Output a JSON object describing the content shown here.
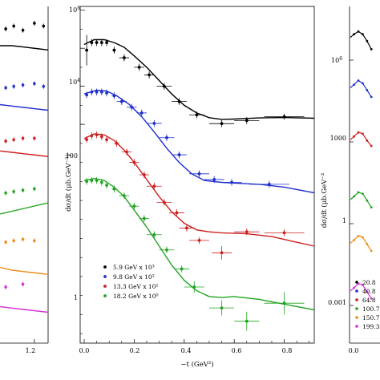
{
  "chart_data": [
    {
      "panel": "left",
      "type": "scatter",
      "x_ticks": [
        "1.2"
      ],
      "series": [
        {
          "color": "#000000",
          "x": [
            0.95,
            1.02,
            1.1,
            1.2,
            1.28
          ],
          "y": [
            10.2,
            10.3,
            10.15,
            10.4,
            10.3
          ],
          "curve_y": [
            9.6,
            9.6,
            9.55,
            9.5,
            9.45
          ]
        },
        {
          "color": "#1f2ecc",
          "x": [
            0.95,
            1.02,
            1.1,
            1.2,
            1.28
          ],
          "y": [
            8.1,
            8.15,
            8.2,
            8.25,
            8.15
          ],
          "curve_y": [
            7.5,
            7.45,
            7.4,
            7.35,
            7.3
          ]
        },
        {
          "color": "#cc1f1f",
          "x": [
            0.95,
            1.02,
            1.1,
            1.2
          ],
          "y": [
            6.2,
            6.25,
            6.3,
            6.3
          ],
          "curve_y": [
            5.85,
            5.8,
            5.75,
            5.7,
            5.65
          ]
        },
        {
          "color": "#1fa31f",
          "x": [
            0.95,
            1.02,
            1.1,
            1.2
          ],
          "y": [
            4.35,
            4.4,
            4.45,
            4.5
          ],
          "curve_y": [
            3.6,
            3.7,
            3.8,
            3.9,
            4.0
          ]
        },
        {
          "color": "#f28c1a",
          "x": [
            0.95,
            1.02,
            1.1,
            1.2
          ],
          "y": [
            2.6,
            2.65,
            2.7,
            2.65
          ],
          "curve_y": [
            1.7,
            1.6,
            1.55,
            1.5,
            1.45
          ]
        },
        {
          "color": "#d42fd4",
          "x": [
            0.95,
            1.1
          ],
          "y": [
            1.0,
            1.1
          ],
          "curve_y": [
            0.3,
            0.25,
            0.2,
            0.15,
            0.1
          ]
        }
      ]
    },
    {
      "panel": "center",
      "type": "scatter",
      "xlabel": "−t (GeV²)",
      "ylabel": "dσ/dt (μb.GeV⁻²)",
      "xlim": [
        0.0,
        0.92
      ],
      "x_ticks": [
        "0.0",
        "0.2",
        "0.4",
        "0.6",
        "0.8"
      ],
      "y_scale": "log",
      "y_ticks": [
        "10⁶",
        "10⁴",
        "100",
        "1"
      ],
      "legend": {
        "position": "bottom-left",
        "entries": [
          "5.9 GeV x 10³",
          "9.8 GeV x 10²",
          "13.3 GeV x 10¹",
          "18.2 GeV x 10⁰"
        ]
      },
      "series": [
        {
          "name": "5.9 GeV x 10³",
          "color": "#000000",
          "points": [
            {
              "x": 0.01,
              "y": 3.9,
              "ey": 0.8
            },
            {
              "x": 0.03,
              "y": 4.3
            },
            {
              "x": 0.05,
              "y": 4.3
            },
            {
              "x": 0.07,
              "y": 4.3
            },
            {
              "x": 0.09,
              "y": 4.3
            },
            {
              "x": 0.12,
              "y": 3.9
            },
            {
              "x": 0.16,
              "y": 3.5,
              "ex": 0.02
            },
            {
              "x": 0.22,
              "y": 3.0,
              "ex": 0.02
            },
            {
              "x": 0.26,
              "y": 2.6,
              "ex": 0.02
            },
            {
              "x": 0.32,
              "y": 2.0,
              "ex": 0.03
            },
            {
              "x": 0.38,
              "y": 1.2,
              "ex": 0.03
            },
            {
              "x": 0.45,
              "y": 0.5,
              "ex": 0.03
            },
            {
              "x": 0.55,
              "y": 0.04,
              "ex": 0.05
            },
            {
              "x": 0.65,
              "y": 0.2,
              "ex": 0.05
            },
            {
              "x": 0.8,
              "y": 0.4,
              "ex": 0.08,
              "ey": 0.15
            }
          ],
          "curve": [
            [
              0.0,
              4.2
            ],
            [
              0.04,
              4.45
            ],
            [
              0.08,
              4.45
            ],
            [
              0.12,
              4.3
            ],
            [
              0.16,
              4.05
            ],
            [
              0.2,
              3.6
            ],
            [
              0.25,
              3.0
            ],
            [
              0.3,
              2.3
            ],
            [
              0.35,
              1.6
            ],
            [
              0.4,
              1.0
            ],
            [
              0.45,
              0.6
            ],
            [
              0.5,
              0.35
            ],
            [
              0.55,
              0.26
            ],
            [
              0.6,
              0.28
            ],
            [
              0.7,
              0.34
            ],
            [
              0.8,
              0.36
            ],
            [
              0.92,
              0.32
            ]
          ]
        },
        {
          "name": "9.8 GeV x 10²",
          "color": "#1f2ecc",
          "points": [
            {
              "x": 0.01,
              "y": 1.55
            },
            {
              "x": 0.03,
              "y": 1.7
            },
            {
              "x": 0.05,
              "y": 1.7
            },
            {
              "x": 0.07,
              "y": 1.7
            },
            {
              "x": 0.09,
              "y": 1.65
            },
            {
              "x": 0.12,
              "y": 1.5,
              "ex": 0.01
            },
            {
              "x": 0.15,
              "y": 1.2,
              "ex": 0.02
            },
            {
              "x": 0.19,
              "y": 0.9,
              "ex": 0.02
            },
            {
              "x": 0.23,
              "y": 0.6,
              "ex": 0.02
            },
            {
              "x": 0.28,
              "y": 0.05,
              "ex": 0.03
            },
            {
              "x": 0.33,
              "y": -0.7,
              "ex": 0.03
            },
            {
              "x": 0.38,
              "y": -1.6,
              "ex": 0.03
            },
            {
              "x": 0.46,
              "y": -2.6,
              "ex": 0.04
            },
            {
              "x": 0.52,
              "y": -2.9,
              "ex": 0.04
            },
            {
              "x": 0.59,
              "y": -3.05,
              "ex": 0.04
            },
            {
              "x": 0.74,
              "y": -3.15,
              "ex": 0.08
            }
          ],
          "curve": [
            [
              0.0,
              1.6
            ],
            [
              0.05,
              1.8
            ],
            [
              0.09,
              1.75
            ],
            [
              0.13,
              1.5
            ],
            [
              0.18,
              1.05
            ],
            [
              0.23,
              0.4
            ],
            [
              0.28,
              -0.4
            ],
            [
              0.33,
              -1.25
            ],
            [
              0.38,
              -2.0
            ],
            [
              0.43,
              -2.6
            ],
            [
              0.48,
              -2.95
            ],
            [
              0.55,
              -3.05
            ],
            [
              0.62,
              -3.1
            ],
            [
              0.7,
              -3.15
            ],
            [
              0.8,
              -3.3
            ],
            [
              0.92,
              -3.6
            ]
          ]
        },
        {
          "name": "13.3 GeV x 10¹",
          "color": "#cc1f1f",
          "points": [
            {
              "x": 0.01,
              "y": -0.8
            },
            {
              "x": 0.03,
              "y": -0.6
            },
            {
              "x": 0.05,
              "y": -0.55
            },
            {
              "x": 0.07,
              "y": -0.65
            },
            {
              "x": 0.09,
              "y": -0.8
            },
            {
              "x": 0.13,
              "y": -1.0,
              "ex": 0.01
            },
            {
              "x": 0.17,
              "y": -1.45,
              "ex": 0.02
            },
            {
              "x": 0.2,
              "y": -2.0,
              "ex": 0.02
            },
            {
              "x": 0.24,
              "y": -2.65,
              "ex": 0.02
            },
            {
              "x": 0.28,
              "y": -3.25,
              "ex": 0.03
            },
            {
              "x": 0.32,
              "y": -4.1,
              "ex": 0.03
            },
            {
              "x": 0.37,
              "y": -4.65,
              "ex": 0.03
            },
            {
              "x": 0.41,
              "y": -5.45,
              "ex": 0.03
            },
            {
              "x": 0.46,
              "y": -6.1,
              "ex": 0.04
            },
            {
              "x": 0.55,
              "y": -6.75,
              "ex": 0.04,
              "ey": 0.35
            },
            {
              "x": 0.65,
              "y": -5.65,
              "ex": 0.05
            },
            {
              "x": 0.8,
              "y": -5.7,
              "ex": 0.08
            }
          ],
          "curve": [
            [
              0.0,
              -0.75
            ],
            [
              0.04,
              -0.5
            ],
            [
              0.08,
              -0.55
            ],
            [
              0.12,
              -0.85
            ],
            [
              0.16,
              -1.35
            ],
            [
              0.2,
              -2.0
            ],
            [
              0.25,
              -2.9
            ],
            [
              0.3,
              -3.8
            ],
            [
              0.35,
              -4.6
            ],
            [
              0.4,
              -5.2
            ],
            [
              0.45,
              -5.55
            ],
            [
              0.5,
              -5.65
            ],
            [
              0.55,
              -5.7
            ],
            [
              0.65,
              -5.75
            ],
            [
              0.75,
              -5.9
            ],
            [
              0.85,
              -6.2
            ],
            [
              0.92,
              -6.4
            ]
          ]
        },
        {
          "name": "18.2 GeV x 10⁰",
          "color": "#1fa31f",
          "points": [
            {
              "x": 0.01,
              "y": -3.0
            },
            {
              "x": 0.03,
              "y": -2.95
            },
            {
              "x": 0.05,
              "y": -2.95
            },
            {
              "x": 0.07,
              "y": -3.05
            },
            {
              "x": 0.09,
              "y": -3.2
            },
            {
              "x": 0.12,
              "y": -3.4,
              "ex": 0.01
            },
            {
              "x": 0.16,
              "y": -3.75,
              "ex": 0.02
            },
            {
              "x": 0.2,
              "y": -4.3,
              "ex": 0.02
            },
            {
              "x": 0.24,
              "y": -4.95,
              "ex": 0.02
            },
            {
              "x": 0.28,
              "y": -5.8,
              "ex": 0.03
            },
            {
              "x": 0.33,
              "y": -6.6,
              "ex": 0.03
            },
            {
              "x": 0.39,
              "y": -7.6,
              "ex": 0.03
            },
            {
              "x": 0.44,
              "y": -8.55,
              "ex": 0.04,
              "ey": 0.3
            },
            {
              "x": 0.55,
              "y": -9.65,
              "ex": 0.05,
              "ey": 0.4
            },
            {
              "x": 0.65,
              "y": -10.35,
              "ex": 0.05,
              "ey": 0.5
            },
            {
              "x": 0.8,
              "y": -9.4,
              "ex": 0.08,
              "ey": 0.6
            }
          ],
          "curve": [
            [
              0.0,
              -2.95
            ],
            [
              0.04,
              -2.85
            ],
            [
              0.08,
              -2.95
            ],
            [
              0.12,
              -3.3
            ],
            [
              0.16,
              -3.8
            ],
            [
              0.2,
              -4.5
            ],
            [
              0.25,
              -5.4
            ],
            [
              0.3,
              -6.4
            ],
            [
              0.35,
              -7.4
            ],
            [
              0.4,
              -8.2
            ],
            [
              0.45,
              -8.75
            ],
            [
              0.5,
              -9.05
            ],
            [
              0.55,
              -9.1
            ],
            [
              0.6,
              -9.05
            ],
            [
              0.7,
              -9.2
            ],
            [
              0.8,
              -9.45
            ],
            [
              0.92,
              -9.75
            ]
          ]
        }
      ]
    },
    {
      "panel": "right",
      "type": "scatter",
      "ylabel": "dσ/dt (μb.GeV⁻²",
      "x_ticks": [
        "0.0"
      ],
      "y_ticks": [
        "10⁶",
        "1000",
        "1",
        "0.001"
      ],
      "legend": {
        "position": "bottom-left",
        "entries": [
          "20.8",
          "40.8",
          "64.8",
          "100.7",
          "150.7",
          "199.3"
        ]
      },
      "series": [
        {
          "color": "#000000",
          "x": [
            0.02,
            0.05,
            0.08,
            0.11,
            0.14
          ],
          "y": [
            6.95,
            7.05,
            6.95,
            6.7,
            6.4
          ]
        },
        {
          "color": "#1f2ecc",
          "x": [
            0.02,
            0.05,
            0.08,
            0.11,
            0.14
          ],
          "y": [
            5.1,
            5.25,
            5.15,
            4.9,
            4.65
          ]
        },
        {
          "color": "#cc1f1f",
          "x": [
            0.02,
            0.05,
            0.08,
            0.11,
            0.14
          ],
          "y": [
            3.2,
            3.35,
            3.3,
            3.05,
            2.85
          ]
        },
        {
          "color": "#1fa31f",
          "x": [
            0.02,
            0.05,
            0.08,
            0.11,
            0.14
          ],
          "y": [
            1.0,
            1.15,
            1.1,
            0.85,
            0.6
          ]
        },
        {
          "color": "#f28c1a",
          "x": [
            0.02,
            0.05,
            0.08,
            0.11,
            0.14
          ],
          "y": [
            -0.6,
            -0.45,
            -0.5,
            -0.75,
            -1.0
          ]
        },
        {
          "color": "#d42fd4",
          "x": [
            0.02,
            0.05,
            0.08,
            0.11,
            0.14
          ],
          "y": [
            -2.35,
            -2.2,
            -2.25,
            -2.5,
            -2.75
          ]
        }
      ]
    }
  ]
}
